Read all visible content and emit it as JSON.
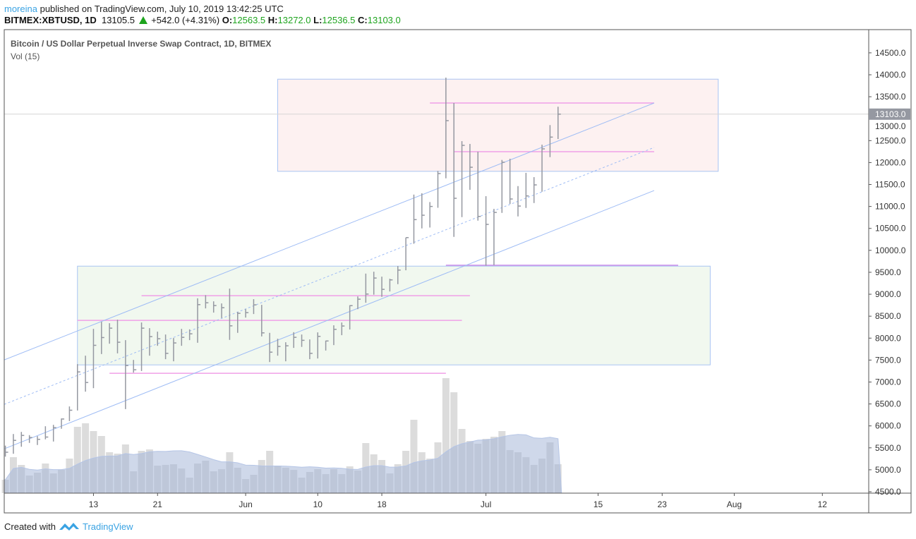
{
  "header": {
    "user": "moreina",
    "published_text": "published on TradingView.com, July 10, 2019 13:42:25 UTC",
    "symbol": "BITMEX:XBTUSD, 1D",
    "last": "13105.5",
    "change": "+542.0 (+4.31%)",
    "o_label": "O:",
    "o": "12563.5",
    "h_label": "H:",
    "h": "13272.0",
    "l_label": "L:",
    "l": "12536.5",
    "c_label": "C:",
    "c": "13103.0"
  },
  "legend": {
    "title": "Bitcoin / US Dollar Perpetual Inverse Swap Contract, 1D, BITMEX",
    "indicator": "Vol (15)"
  },
  "footer": {
    "created_with": "Created with",
    "brand": "TradingView"
  },
  "colors": {
    "bar": "#9598a1",
    "volume": "#dcdcdc",
    "volume_ma": "#9fb1d6",
    "channel": "#9ebcf5",
    "level": "#f0a0e8",
    "level_purple": "#c58be8",
    "zone_top": "#fdf1f1",
    "zone_bottom": "#f1f8ef",
    "axis_text": "#333333",
    "price_label_bg": "#9598a1"
  },
  "chart_data": {
    "type": "ohlc",
    "title": "Bitcoin / US Dollar Perpetual Inverse Swap Contract, 1D, BITMEX",
    "start_date": "2019-05-02",
    "ylim": [
      4500,
      14500
    ],
    "y_ticks": [
      "4500.0",
      "5000.0",
      "5500.0",
      "6000.0",
      "6500.0",
      "7000.0",
      "7500.0",
      "8000.0",
      "8500.0",
      "9000.0",
      "9500.0",
      "10000.0",
      "10500.0",
      "11000.0",
      "11500.0",
      "12000.0",
      "12500.0",
      "13000.0",
      "13500.0",
      "14000.0",
      "14500.0"
    ],
    "x_ticks": [
      {
        "date": "2019-05-13",
        "label": "13"
      },
      {
        "date": "2019-05-21",
        "label": "21"
      },
      {
        "date": "2019-06-01",
        "label": "Jun"
      },
      {
        "date": "2019-06-10",
        "label": "10"
      },
      {
        "date": "2019-06-18",
        "label": "18"
      },
      {
        "date": "2019-07-01",
        "label": "Jul"
      },
      {
        "date": "2019-07-15",
        "label": "15"
      },
      {
        "date": "2019-07-23",
        "label": "23"
      },
      {
        "date": "2019-08-01",
        "label": "Aug"
      },
      {
        "date": "2019-08-12",
        "label": "12"
      }
    ],
    "last_price_label": "13103.0",
    "last_price": 13103,
    "bars_hlc": [
      [
        5550,
        5300,
        5400
      ],
      [
        5815,
        5365,
        5670
      ],
      [
        5863,
        5525,
        5783
      ],
      [
        5790,
        5613,
        5735
      ],
      [
        5767,
        5565,
        5694
      ],
      [
        5992,
        5694,
        5746
      ],
      [
        6024,
        5644,
        5960
      ],
      [
        6169,
        5935,
        6157
      ],
      [
        6443,
        6110,
        6357
      ],
      [
        7407,
        6351,
        7230
      ],
      [
        7600,
        6780,
        6989
      ],
      [
        8211,
        6860,
        7836
      ],
      [
        8372,
        7637,
        8013
      ],
      [
        8340,
        7873,
        8227
      ],
      [
        8420,
        7653,
        7906
      ],
      [
        7954,
        6383,
        7375
      ],
      [
        7503,
        7214,
        7279
      ],
      [
        8356,
        7250,
        8227
      ],
      [
        8227,
        7600,
        8034
      ],
      [
        8147,
        7825,
        7986
      ],
      [
        8082,
        7520,
        7653
      ],
      [
        8002,
        7472,
        7890
      ],
      [
        8211,
        7825,
        8018
      ],
      [
        8200,
        7954,
        8098
      ],
      [
        8907,
        7894,
        8763
      ],
      [
        8980,
        8677,
        8806
      ],
      [
        8838,
        8581,
        8742
      ],
      [
        8790,
        8457,
        8693
      ],
      [
        9128,
        7960,
        8280
      ],
      [
        8597,
        8120,
        8565
      ],
      [
        8661,
        8468,
        8581
      ],
      [
        8887,
        8549,
        8758
      ],
      [
        8758,
        8039,
        8120
      ],
      [
        8120,
        7455,
        7680
      ],
      [
        7986,
        7600,
        7810
      ],
      [
        7906,
        7472,
        7825
      ],
      [
        8136,
        7777,
        8018
      ],
      [
        8082,
        7800,
        7950
      ],
      [
        7970,
        7520,
        7653
      ],
      [
        8131,
        7536,
        8040
      ],
      [
        7943,
        7717,
        7935
      ],
      [
        8292,
        7841,
        8200
      ],
      [
        8356,
        8067,
        8276
      ],
      [
        8749,
        8196,
        8740
      ],
      [
        8950,
        8660,
        8887
      ],
      [
        9470,
        8806,
        9004
      ],
      [
        9513,
        8990,
        9369
      ],
      [
        9400,
        8940,
        9111
      ],
      [
        9353,
        9063,
        9327
      ],
      [
        9642,
        9230,
        9550
      ],
      [
        10290,
        9546,
        10290
      ],
      [
        11270,
        10150,
        10700
      ],
      [
        11300,
        10500,
        10800
      ],
      [
        11100,
        10520,
        11000
      ],
      [
        11810,
        10970,
        11750
      ],
      [
        13936,
        11641,
        12955
      ],
      [
        13357,
        10307,
        11186
      ],
      [
        12488,
        10757,
        12392
      ],
      [
        12424,
        11379,
        11893
      ],
      [
        12247,
        10677,
        10773
      ],
      [
        11234,
        9650,
        10591
      ],
      [
        10945,
        9663,
        10864
      ],
      [
        12060,
        10853,
        12006
      ],
      [
        12087,
        11057,
        11170
      ],
      [
        11464,
        10773,
        11009
      ],
      [
        11765,
        10966,
        11240
      ],
      [
        11668,
        11078,
        11491
      ],
      [
        12408,
        11336,
        12312
      ],
      [
        12854,
        12124,
        12580
      ],
      [
        13272,
        12536.5,
        13103
      ]
    ],
    "volume": [
      19,
      51,
      40,
      25,
      29,
      42,
      28,
      33,
      49,
      94,
      99,
      88,
      81,
      58,
      56,
      69,
      31,
      60,
      62,
      39,
      40,
      41,
      35,
      22,
      42,
      46,
      31,
      34,
      58,
      36,
      20,
      26,
      47,
      60,
      39,
      36,
      33,
      22,
      30,
      34,
      27,
      34,
      27,
      38,
      32,
      71,
      55,
      47,
      28,
      41,
      60,
      104,
      58,
      49,
      72,
      163,
      143,
      91,
      74,
      70,
      77,
      80,
      88,
      61,
      58,
      51,
      40,
      49,
      72,
      41
    ],
    "drawings": {
      "zones": [
        {
          "name": "resistance-zone",
          "from": "2019-06-05",
          "to": "2019-07-30",
          "top": 13900,
          "bottom": 11800,
          "fill": "zone_top"
        },
        {
          "name": "support-zone",
          "from": "2019-05-11",
          "to": "2019-07-29",
          "top": 9640,
          "bottom": 7390,
          "fill": "zone_bottom"
        }
      ],
      "levels": [
        {
          "price": 13357,
          "from": "2019-06-24",
          "to": "2019-07-22",
          "color": "level"
        },
        {
          "price": 12247,
          "from": "2019-06-27",
          "to": "2019-07-22",
          "color": "level"
        },
        {
          "price": 9660,
          "from": "2019-06-26",
          "to": "2019-07-25",
          "color": "level_purple"
        },
        {
          "price": 8967,
          "from": "2019-05-19",
          "to": "2019-06-29",
          "color": "level"
        },
        {
          "price": 8404,
          "from": "2019-05-11",
          "to": "2019-06-28",
          "color": "level"
        },
        {
          "price": 7198,
          "from": "2019-05-15",
          "to": "2019-06-26",
          "color": "level"
        }
      ],
      "channel": [
        {
          "name": "channel-upper",
          "from": [
            "2019-05-02",
            7504
          ],
          "to": [
            "2019-07-22",
            13357
          ],
          "dashed": false
        },
        {
          "name": "channel-middle",
          "from": [
            "2019-05-02",
            6491
          ],
          "to": [
            "2019-07-22",
            12344
          ],
          "dashed": true
        },
        {
          "name": "channel-lower",
          "from": [
            "2019-05-02",
            5478
          ],
          "to": [
            "2019-07-22",
            11363
          ],
          "dashed": false
        }
      ]
    }
  }
}
